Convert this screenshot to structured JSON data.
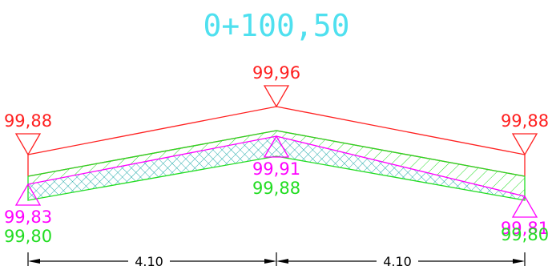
{
  "station": "0+100,50",
  "colors": {
    "station": "#4fe0ef",
    "design": "#ff2020",
    "layer": "#ff00ff",
    "ground": "#22dd22",
    "dim": "#000000"
  },
  "design_levels": {
    "left": "99,88",
    "center": "99,96",
    "right": "99,88"
  },
  "layer_levels": {
    "left": "99,83",
    "center": "99,91",
    "right": "99,81"
  },
  "ground_levels": {
    "left": "99,80",
    "center": "99,88",
    "right": "99,80"
  },
  "dimensions": {
    "left": "4.10",
    "right": "4.10"
  }
}
